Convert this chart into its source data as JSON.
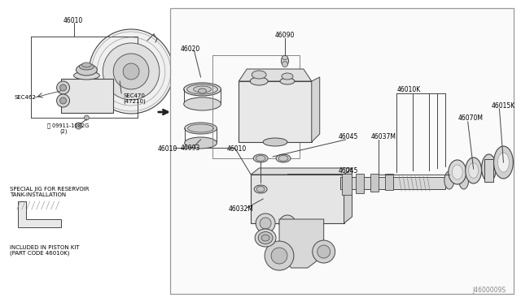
{
  "bg_color": "#ffffff",
  "line_color": "#444444",
  "text_color": "#000000",
  "panel_bg": "#ffffff",
  "part_fill": "#e8e8e8",
  "part_dark": "#cccccc",
  "part_mid": "#d8d8d8",
  "watermark": "J4600009S",
  "figsize": [
    6.4,
    3.72
  ],
  "dpi": 100,
  "labels": {
    "46010_top": "46010",
    "46020": "46020",
    "46090": "46090",
    "46093": "46093",
    "46045a": "46045",
    "46045b": "46045",
    "46032M": "46032M",
    "46010_mid": "46010",
    "46010K": "46010K",
    "46037M": "46037M",
    "46070M": "46070M",
    "46015K": "46015K",
    "sec462": "SEC462",
    "sec470": "SEC470",
    "sec470b": "(47210)",
    "bolt": "Ⓝ 09911-1082G",
    "bolt2": "(2)",
    "jig1": "SPECIAL JIG FOR RESERVOIR",
    "jig2": "TANK-INSTALLATION",
    "inc1": "INCLUDED IN PISTON KIT",
    "inc2": "(PART CODE 46010K)"
  }
}
